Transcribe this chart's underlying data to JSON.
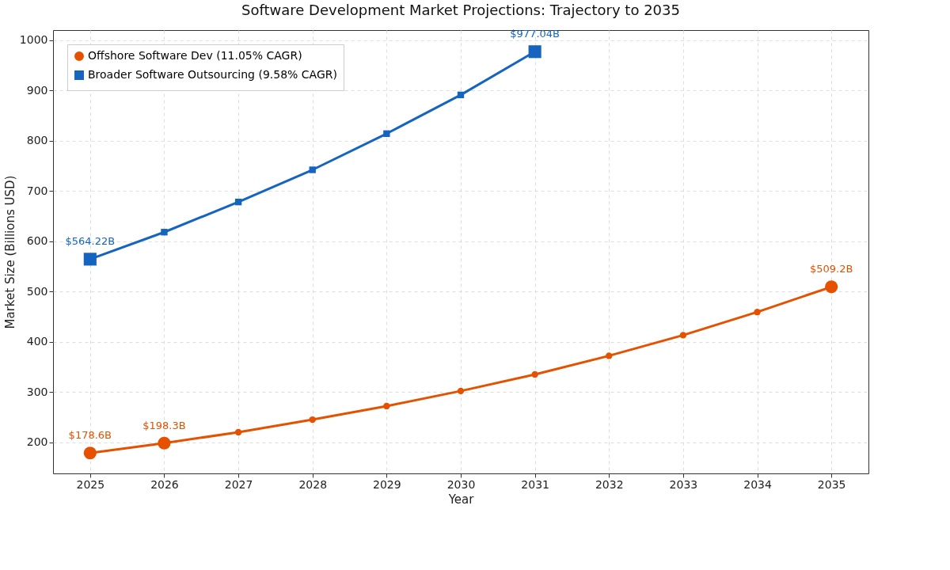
{
  "chart_data": {
    "type": "line",
    "title": "Software Development Market Projections: Trajectory to 2035",
    "xlabel": "Year",
    "ylabel": "Market Size (Billions USD)",
    "series": [
      {
        "name": "Offshore Software Dev (11.05% CAGR)",
        "color": "#e65100",
        "marker": "circle",
        "x": [
          2025,
          2026,
          2027,
          2028,
          2029,
          2030,
          2031,
          2032,
          2033,
          2034,
          2035
        ],
        "values": [
          178.6,
          198.3,
          220,
          245,
          272,
          302,
          335,
          372,
          413,
          459,
          509.2
        ]
      },
      {
        "name": "Broader Software Outsourcing (9.58% CAGR)",
        "color": "#1565c0",
        "marker": "square",
        "x": [
          2025,
          2026,
          2027,
          2028,
          2029,
          2030,
          2031
        ],
        "values": [
          564.22,
          618,
          678,
          742,
          814,
          891,
          977.04
        ]
      }
    ],
    "annotations": [
      {
        "text": "$178.6B",
        "x": 2025,
        "y": 178.6
      },
      {
        "text": "$198.3B",
        "x": 2026,
        "y": 198.3
      },
      {
        "text": "$509.2B",
        "x": 2035,
        "y": 509.2
      },
      {
        "text": "$564.22B",
        "x": 2025,
        "y": 564.22
      },
      {
        "text": "$977.04B",
        "x": 2031,
        "y": 977.04
      }
    ],
    "xlim": [
      2024.5,
      2035.5
    ],
    "xticks": [
      2025,
      2026,
      2027,
      2028,
      2029,
      2030,
      2031,
      2032,
      2033,
      2034,
      2035
    ],
    "ylim": [
      138,
      1020
    ],
    "yticks": [
      200,
      300,
      400,
      500,
      600,
      700,
      800,
      900,
      {
        "value": 1000,
        "label": "1000"
      }
    ],
    "grid": true,
    "legend": "top left",
    "line_style": "solid"
  }
}
